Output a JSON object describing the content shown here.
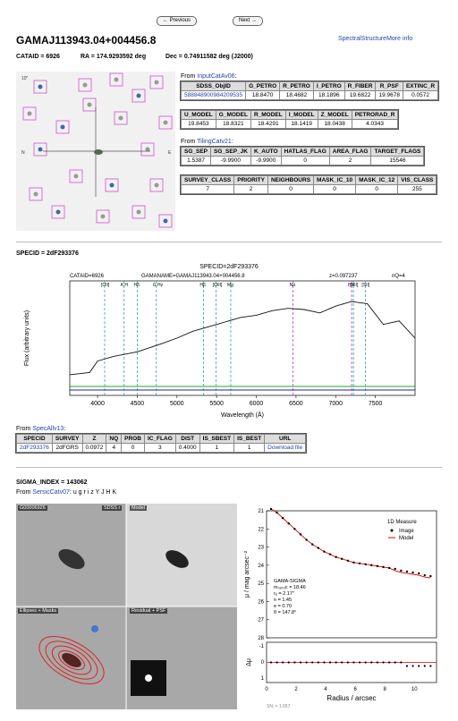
{
  "nav": {
    "prev_label": "← Previous",
    "next_label": "Next →"
  },
  "header": {
    "title": "GAMAJ113943.04+004456.8",
    "spectral_link": "SpectralStructureMore info",
    "cataid_label": "CATAID = 6926",
    "ra_label": "RA = 174.9293592 deg",
    "dec_label": "Dec = 0.74911582 deg   (J2000)"
  },
  "finder": {
    "n_label": "N",
    "e_label": "E",
    "scale_label": "10\""
  },
  "tables": {
    "from_input": "From ",
    "input_link": "InputCatAv06",
    "t1": {
      "headers": [
        "SDSS_ObjID",
        "G_PETRO",
        "R_PETRO",
        "I_PETRO",
        "R_FIBER",
        "R_PSF",
        "EXTINC_R"
      ],
      "row": [
        "588848900984209535",
        "18.8470",
        "18.4682",
        "18.1896",
        "19.6822",
        "19.9678",
        "0.0572"
      ]
    },
    "t2": {
      "headers": [
        "U_MODEL",
        "G_MODEL",
        "R_MODEL",
        "I_MODEL",
        "Z_MODEL",
        "PETRORAD_R"
      ],
      "row": [
        "19.8453",
        "18.8321",
        "18.4291",
        "18.1419",
        "18.0438",
        "4.0343"
      ]
    },
    "tiling_link": "TilingCatv21",
    "t3": {
      "headers": [
        "SG_SEP",
        "SG_SEP_JK",
        "K_AUTO",
        "HATLAS_FLAG",
        "AREA_FLAG",
        "TARGET_FLAGS"
      ],
      "row": [
        "1.5387",
        "-9.9900",
        "-9.9900",
        "0",
        "2",
        "15546"
      ]
    },
    "t4": {
      "headers": [
        "SURVEY_CLASS",
        "PRIORITY",
        "NEIGHBOURS",
        "MASK_IC_10",
        "MASK_IC_12",
        "VIS_CLASS"
      ],
      "row": [
        "7",
        "2",
        "0",
        "0",
        "0",
        "255"
      ]
    }
  },
  "specid": {
    "label": "SPECID = 2dF293376",
    "plot_title": "SPECID=2dF293376",
    "cataid": "CATAID=6926",
    "gamaname": "GAMANAME=GAMAJ113943.04+004456.8",
    "z": "z=0.097237",
    "nq": "nQ=4",
    "xlabel": "Wavelength (Å)",
    "ylabel": "Flux (arbitrary units)",
    "lines": [
      "[OII]",
      "K H",
      "Hδ",
      "G Hγ",
      "Hβ",
      "[OIII]",
      "Mg",
      "Na",
      "Hα",
      "[NII]",
      "[SII]"
    ],
    "xticks": [
      "4000",
      "4500",
      "5000",
      "5500",
      "6000",
      "6500",
      "7000",
      "7500"
    ],
    "from_spec": "From ",
    "spec_link": "SpecAllv13",
    "t5": {
      "headers": [
        "SPECID",
        "SURVEY",
        "Z",
        "NQ",
        "PROB",
        "IC_FLAG",
        "DIST",
        "IS_SBEST",
        "IS_BEST",
        "URL"
      ],
      "row": [
        "2dF293376",
        "2dFGRS",
        "0.0972",
        "4",
        "0",
        "3",
        "0.4000",
        "1",
        "1",
        "Download file"
      ]
    }
  },
  "sigma": {
    "label": "SIGMA_INDEX = 143062",
    "from": "From ",
    "link": "SersicCatv07",
    "bands": "u g r i z Y J H K",
    "panels": [
      "G00006926",
      "SDSS r",
      "Model",
      "Ellipses + Masks",
      "Residual + PSF"
    ],
    "plot": {
      "legend_title": "1D Measure",
      "legend_image": "Image",
      "legend_model": "Model",
      "ylabel_top": "μ / mag arcsec⁻²",
      "ylabel_bottom": "Δμ",
      "xlabel": "Radius / arcsec",
      "info": [
        "GAMA-SIGMA",
        "mₛₑᵣₛᵢc = 18.46",
        "rₑ = 2.17\"",
        "n = 1.45",
        "e = 0.70",
        "θ = 147.8°"
      ],
      "xticks": [
        "0",
        "2",
        "4",
        "6",
        "8",
        "10"
      ],
      "yticks_top": [
        "21",
        "22",
        "23",
        "24",
        "25",
        "26",
        "27",
        "28"
      ],
      "yticks_bottom": [
        "-1",
        "0",
        "1"
      ],
      "foot": "SNᵣ = 1.657"
    }
  },
  "chart_data": [
    {
      "type": "line",
      "title": "SPECID=2dF293376",
      "xlabel": "Wavelength (Å)",
      "ylabel": "Flux (arbitrary units)",
      "xlim": [
        3650,
        8000
      ],
      "x": [
        3650,
        3900,
        4000,
        4200,
        4500,
        4800,
        5000,
        5200,
        5500,
        5800,
        6000,
        6200,
        6400,
        6600,
        6800,
        7000,
        7200,
        7400,
        7600,
        7800,
        8000
      ],
      "series": [
        {
          "values": [
            0.18,
            0.2,
            0.3,
            0.34,
            0.38,
            0.45,
            0.5,
            0.56,
            0.62,
            0.68,
            0.7,
            0.74,
            0.76,
            0.75,
            0.72,
            0.78,
            0.82,
            0.8,
            0.62,
            0.65,
            0.5
          ]
        }
      ]
    },
    {
      "type": "scatter",
      "xlabel": "Radius / arcsec",
      "ylabel": "μ / mag arcsec⁻²",
      "x": [
        0.3,
        0.7,
        1.1,
        1.5,
        1.9,
        2.3,
        2.7,
        3.1,
        3.5,
        3.9,
        4.3,
        4.7,
        5.1,
        5.5,
        5.9,
        6.3,
        6.7,
        7.1,
        7.5,
        7.9,
        8.3,
        8.7,
        9.1,
        9.5,
        9.9,
        10.3,
        10.7,
        11.1
      ],
      "series": [
        {
          "name": "Image",
          "values": [
            20.9,
            21.1,
            21.4,
            21.7,
            22.0,
            22.3,
            22.6,
            22.85,
            23.05,
            23.25,
            23.4,
            23.55,
            23.65,
            23.75,
            23.85,
            23.9,
            23.95,
            24.0,
            24.05,
            24.1,
            24.15,
            24.2,
            24.3,
            24.35,
            24.4,
            24.45,
            24.55,
            24.6
          ]
        }
      ],
      "ylim": [
        28,
        21
      ],
      "xlim": [
        0,
        11.5
      ]
    }
  ]
}
